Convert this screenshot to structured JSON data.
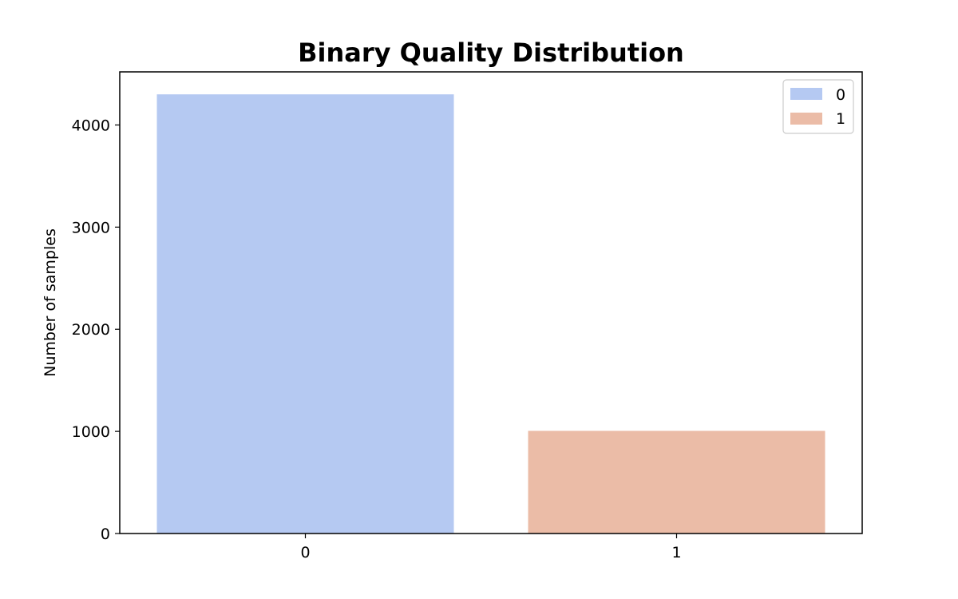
{
  "chart_data": {
    "type": "bar",
    "title": "Binary Quality Distribution",
    "xlabel": "",
    "ylabel": "Number of samples",
    "categories": [
      "0",
      "1"
    ],
    "values": [
      4300,
      1005
    ],
    "colors": [
      "#b5c9f2",
      "#ebbca7"
    ],
    "ylim": [
      0,
      4520
    ],
    "yticks": [
      0,
      1000,
      2000,
      3000,
      4000
    ],
    "legend": {
      "placement": "top-right",
      "entries": [
        "0",
        "1"
      ]
    },
    "grid": false
  }
}
